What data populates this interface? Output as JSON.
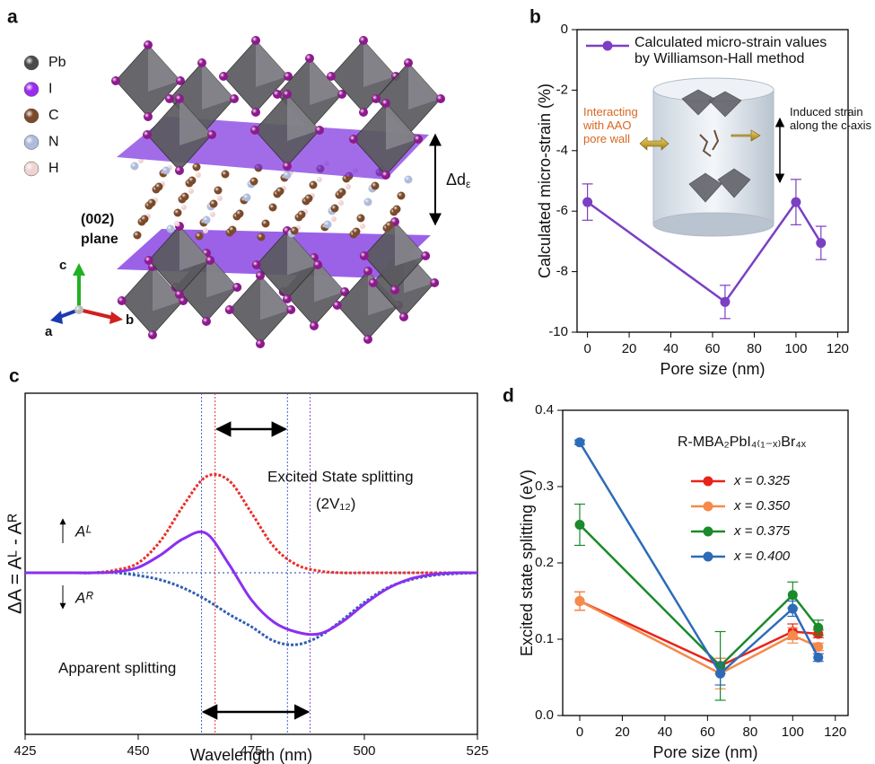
{
  "panel_labels": [
    "a",
    "b",
    "c",
    "d"
  ],
  "structure": {
    "legend": [
      {
        "label": "Pb",
        "color": "#4a4a4a"
      },
      {
        "label": "I",
        "color": "#9a2cf0"
      },
      {
        "label": "C",
        "color": "#7a4a2a"
      },
      {
        "label": "N",
        "color": "#aebbdc"
      },
      {
        "label": "H",
        "color": "#f0d2d2"
      }
    ],
    "plane_label": [
      "(002)",
      "plane"
    ],
    "spacing_label": "Δd",
    "spacing_sub": "ε",
    "axes": [
      "a",
      "b",
      "c"
    ]
  },
  "chart_data": [
    {
      "type": "line",
      "xlabel": "Pore size (nm)",
      "ylabel": "Calculated micro-strain (%)",
      "x": [
        0,
        66,
        100,
        112
      ],
      "series": [
        {
          "name": "Calculated micro-strain values by Williamson-Hall method",
          "color": "#7b3fc4",
          "values": [
            -5.7,
            -9.0,
            -5.7,
            -7.05
          ],
          "errors": [
            0.6,
            0.55,
            0.75,
            0.55
          ]
        }
      ],
      "xlim": [
        -5,
        125
      ],
      "ylim": [
        -10,
        0
      ],
      "xticks": [
        0,
        20,
        40,
        60,
        80,
        100,
        120
      ],
      "yticks": [
        0,
        -2,
        -4,
        -6,
        -8,
        -10
      ],
      "legend": "upper left",
      "annotations": [
        "Interacting with AAO pore wall",
        "Induced strain along the c-axis"
      ]
    },
    {
      "type": "line",
      "smooth": true,
      "xlabel": "Wavelength (nm)",
      "ylabel": "ΔA = Aᴸ - Aᴿ",
      "x": [
        425,
        430,
        435,
        440,
        445,
        450,
        455,
        460,
        465,
        470,
        475,
        480,
        485,
        490,
        495,
        500,
        505,
        510,
        515,
        520,
        525
      ],
      "series": [
        {
          "color": "#e8302a",
          "dash": true,
          "values": [
            0,
            0,
            0,
            0,
            0.03,
            0.11,
            0.36,
            0.75,
            1.07,
            1.03,
            0.67,
            0.29,
            0.09,
            0.02,
            0,
            0,
            0,
            0,
            0,
            0,
            0
          ]
        },
        {
          "color": "#2f5fb0",
          "dash": true,
          "values": [
            0,
            0,
            0,
            0,
            0,
            -0.03,
            -0.08,
            -0.17,
            -0.3,
            -0.46,
            -0.6,
            -0.76,
            -0.8,
            -0.71,
            -0.53,
            -0.33,
            -0.17,
            -0.08,
            -0.03,
            -0.01,
            0
          ]
        },
        {
          "color": "#8b2ff0",
          "dash": false,
          "values": [
            0,
            0,
            0,
            0,
            0.01,
            0.06,
            0.2,
            0.38,
            0.44,
            0.1,
            -0.3,
            -0.55,
            -0.66,
            -0.68,
            -0.55,
            -0.35,
            -0.18,
            -0.07,
            -0.02,
            0,
            0
          ]
        }
      ],
      "xlim": [
        425,
        525
      ],
      "ylim": [
        -1.8,
        2.0
      ],
      "xticks": [
        425,
        450,
        475,
        500,
        525
      ],
      "baseline": true,
      "vlines": [
        {
          "x": 464,
          "color": "#4a5fd0"
        },
        {
          "x": 467,
          "color": "#e03030"
        },
        {
          "x": 483,
          "color": "#4a5fd0"
        },
        {
          "x": 488,
          "color": "#8a4fd0"
        }
      ],
      "annotations": {
        "excited": "Excited State splitting",
        "excited_sub": "(2V₁₂)",
        "apparent": "Apparent splitting",
        "al": "Aᴸ",
        "ar": "Aᴿ"
      }
    },
    {
      "type": "line",
      "title": "R-MBA₂PbI₄₍₁₋ₓ₎Br₄ₓ",
      "xlabel": "Pore size (nm)",
      "ylabel": "Excited state splitting (eV)",
      "x": [
        0,
        66,
        100,
        112
      ],
      "series": [
        {
          "name": "x = 0.325",
          "color": "#e8231a",
          "values": [
            0.15,
            0.065,
            0.11,
            0.107
          ],
          "errors": [
            0.012,
            0.01,
            0.01,
            0.005
          ]
        },
        {
          "name": "x = 0.350",
          "color": "#f58a4b",
          "values": [
            0.15,
            0.055,
            0.105,
            0.09
          ],
          "errors": [
            0.012,
            0.02,
            0.01,
            0.005
          ]
        },
        {
          "name": "x = 0.375",
          "color": "#1a8a2a",
          "values": [
            0.25,
            0.065,
            0.158,
            0.115
          ],
          "errors": [
            0.027,
            0.045,
            0.017,
            0.01
          ]
        },
        {
          "name": "x = 0.400",
          "color": "#2d6bb8",
          "values": [
            0.358,
            0.055,
            0.14,
            0.076
          ],
          "errors": [
            0.003,
            0.015,
            0.01,
            0.005
          ]
        }
      ],
      "xlim": [
        -8,
        126
      ],
      "ylim": [
        0,
        0.4
      ],
      "xticks": [
        0,
        20,
        40,
        60,
        80,
        100,
        120
      ],
      "yticks": [
        {
          "value": 0,
          "label": "0.0"
        },
        0.1,
        0.2,
        0.3,
        0.4
      ],
      "legend": "upper right"
    }
  ]
}
